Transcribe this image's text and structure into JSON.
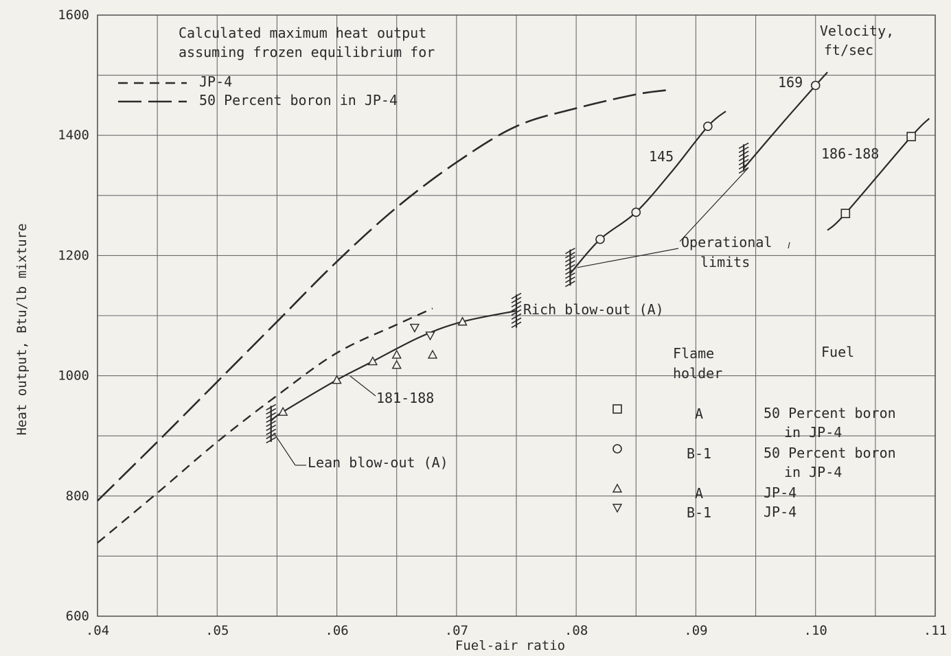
{
  "chart_data": {
    "type": "line",
    "xlabel": "Fuel-air ratio",
    "ylabel": "Heat output, Btu/lb mixture",
    "xlim": [
      0.04,
      0.11
    ],
    "ylim": [
      600,
      1600
    ],
    "x_tick_labels": [
      ".04",
      ".05",
      ".06",
      ".07",
      ".08",
      ".09",
      ".10",
      ".11"
    ],
    "y_tick_labels": [
      "600",
      "800",
      "1000",
      "1200",
      "1400",
      "1600"
    ],
    "grid": true,
    "calculated_title": [
      "Calculated maximum heat output",
      "assuming frozen equilibrium for"
    ],
    "calculated_curves": [
      {
        "name": "JP-4",
        "dash": "short",
        "points": [
          [
            0.04,
            722
          ],
          [
            0.045,
            805
          ],
          [
            0.05,
            890
          ],
          [
            0.055,
            967
          ],
          [
            0.06,
            1038
          ],
          [
            0.065,
            1085
          ],
          [
            0.068,
            1112
          ]
        ]
      },
      {
        "name": "50 Percent boron in JP-4",
        "dash": "long",
        "points": [
          [
            0.04,
            792
          ],
          [
            0.045,
            890
          ],
          [
            0.05,
            990
          ],
          [
            0.055,
            1090
          ],
          [
            0.06,
            1190
          ],
          [
            0.065,
            1280
          ],
          [
            0.07,
            1355
          ],
          [
            0.075,
            1415
          ],
          [
            0.08,
            1445
          ],
          [
            0.085,
            1468
          ],
          [
            0.0875,
            1475
          ]
        ]
      }
    ],
    "experimental_series": [
      {
        "name": "181-188",
        "flameholder": "A",
        "fuel": "JP-4",
        "marker": "triangle-up",
        "line": [
          [
            0.0545,
            925
          ],
          [
            0.0555,
            940
          ],
          [
            0.06,
            993
          ],
          [
            0.063,
            1024
          ],
          [
            0.067,
            1065
          ],
          [
            0.0705,
            1090
          ],
          [
            0.075,
            1108
          ]
        ],
        "points": [
          [
            0.0555,
            940
          ],
          [
            0.06,
            993
          ],
          [
            0.063,
            1024
          ],
          [
            0.065,
            1035
          ],
          [
            0.065,
            1018
          ],
          [
            0.068,
            1035
          ],
          [
            0.0705,
            1090
          ]
        ]
      },
      {
        "name": "",
        "flameholder": "B-1",
        "fuel": "JP-4",
        "marker": "triangle-down",
        "points": [
          [
            0.0665,
            1080
          ],
          [
            0.0678,
            1067
          ]
        ]
      },
      {
        "name": "145",
        "flameholder": "B-1",
        "fuel": "50 Percent boron in JP-4",
        "marker": "circle",
        "line": [
          [
            0.0795,
            1170
          ],
          [
            0.082,
            1227
          ],
          [
            0.085,
            1272
          ],
          [
            0.088,
            1340
          ],
          [
            0.091,
            1415
          ],
          [
            0.0925,
            1440
          ]
        ],
        "points": [
          [
            0.082,
            1227
          ],
          [
            0.085,
            1272
          ],
          [
            0.091,
            1415
          ]
        ]
      },
      {
        "name": "169",
        "flameholder": "B-1",
        "fuel": "50 Percent boron in JP-4",
        "marker": "circle",
        "line": [
          [
            0.094,
            1345
          ],
          [
            0.097,
            1415
          ],
          [
            0.1,
            1483
          ],
          [
            0.101,
            1505
          ]
        ],
        "points": [
          [
            0.1,
            1483
          ]
        ]
      },
      {
        "name": "186-188",
        "flameholder": "A",
        "fuel": "50 Percent boron in JP-4",
        "marker": "square",
        "line": [
          [
            0.101,
            1242
          ],
          [
            0.1025,
            1270
          ],
          [
            0.108,
            1398
          ],
          [
            0.1095,
            1428
          ]
        ],
        "points": [
          [
            0.1025,
            1270
          ],
          [
            0.108,
            1398
          ]
        ]
      }
    ],
    "limits": [
      {
        "label": "Lean blow-out (A)",
        "x": 0.0545,
        "y_range": [
          890,
          950
        ]
      },
      {
        "label": "Rich blow-out (A)",
        "x": 0.075,
        "y_range": [
          1080,
          1135
        ]
      },
      {
        "label": "Operational limits",
        "x": 0.0795,
        "y_range": [
          1150,
          1210
        ]
      },
      {
        "label": "Operational limits",
        "x": 0.094,
        "y_range": [
          1340,
          1385
        ]
      }
    ],
    "velocity_header": [
      "Velocity,",
      "ft/sec"
    ],
    "legend_table": {
      "headers": [
        [
          "Flame",
          "holder"
        ],
        [
          "Fuel"
        ]
      ],
      "rows": [
        {
          "marker": "square",
          "flameholder": "A",
          "fuel": [
            "50 Percent boron",
            "in JP-4"
          ]
        },
        {
          "marker": "circle",
          "flameholder": "B-1",
          "fuel": [
            "50 Percent boron",
            "in JP-4"
          ]
        },
        {
          "marker": "triangle-up",
          "flameholder": "A",
          "fuel": [
            "JP-4"
          ]
        },
        {
          "marker": "triangle-down",
          "flameholder": "B-1",
          "fuel": [
            "JP-4"
          ]
        }
      ]
    }
  }
}
